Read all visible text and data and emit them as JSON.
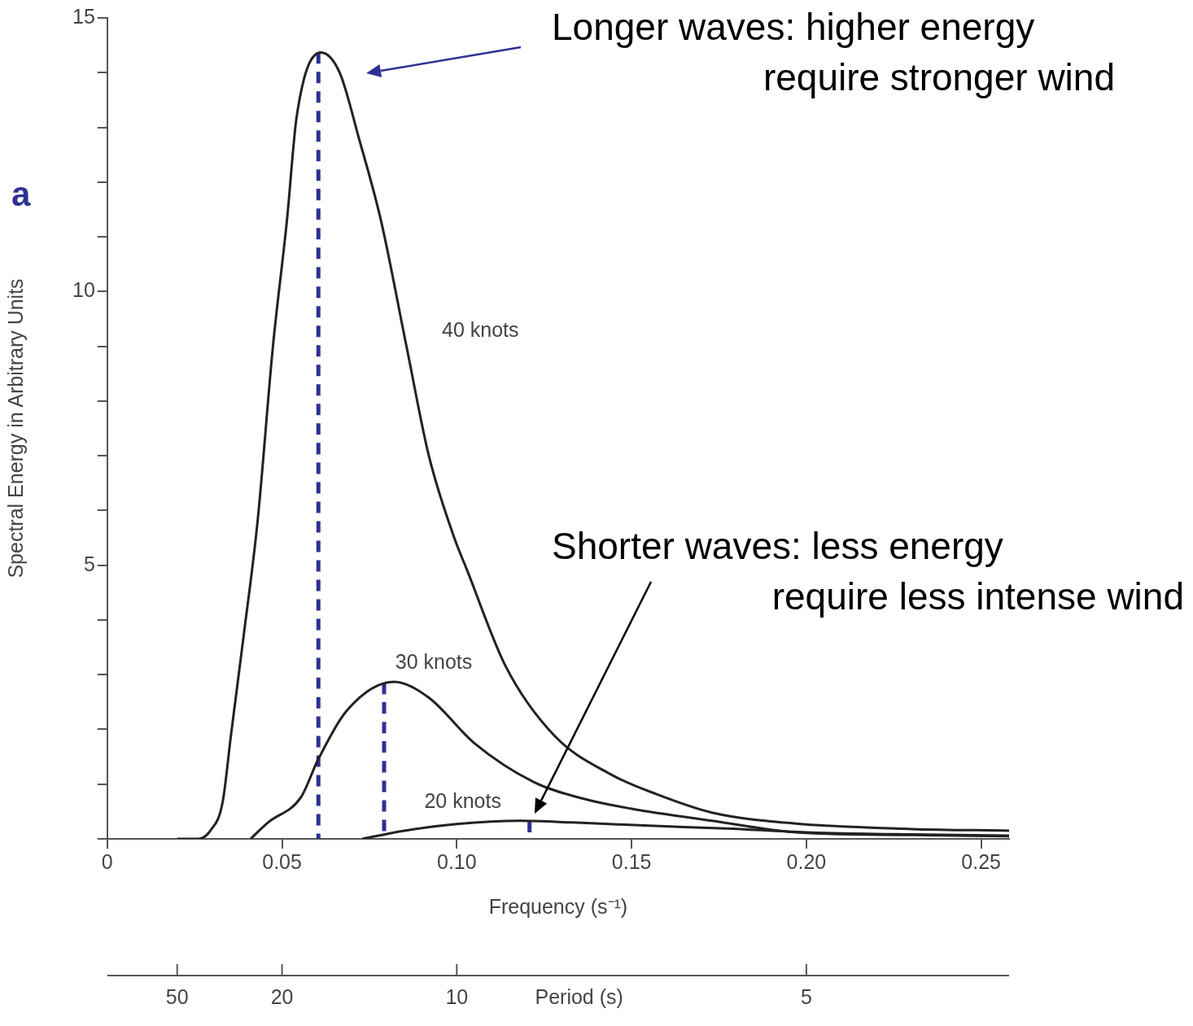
{
  "chart_data": {
    "type": "line",
    "xlabel": "Frequency (s⁻¹)",
    "ylabel": "Spectral Energy in Arbitrary Units",
    "xlim": [
      0,
      0.258
    ],
    "ylim": [
      0,
      15
    ],
    "xticks": [
      {
        "value": 0,
        "label": "0"
      },
      0.05,
      {
        "value": 0.1,
        "label": "0.10"
      },
      0.15,
      {
        "value": 0.2,
        "label": "0.20"
      },
      0.25
    ],
    "yticks": [
      {
        "value": 0,
        "label": null
      },
      {
        "value": 1,
        "label": null
      },
      {
        "value": 2,
        "label": null
      },
      {
        "value": 3,
        "label": null
      },
      {
        "value": 4,
        "label": null
      },
      5,
      {
        "value": 6,
        "label": null
      },
      {
        "value": 7,
        "label": null
      },
      {
        "value": 8,
        "label": null
      },
      {
        "value": 9,
        "label": null
      },
      10,
      {
        "value": 11,
        "label": null
      },
      {
        "value": 12,
        "label": null
      },
      {
        "value": 13,
        "label": null
      },
      {
        "value": 14,
        "label": null
      },
      15
    ],
    "grid": false,
    "legend": false,
    "marker": "none",
    "line_style": "solid",
    "series": [
      {
        "name": "40 knots",
        "color": "#222222",
        "x": [
          0.02,
          0.026,
          0.0295,
          0.033,
          0.0354,
          0.039,
          0.043,
          0.0474,
          0.0514,
          0.0542,
          0.0611,
          0.0665,
          0.072,
          0.0783,
          0.0856,
          0.092,
          0.099,
          0.103,
          0.114,
          0.128,
          0.144,
          0.157,
          0.173,
          0.197,
          0.23,
          0.258
        ],
        "values": [
          0,
          0,
          0.15,
          0.67,
          1.9,
          3.7,
          5.8,
          9.0,
          11.3,
          13.2,
          14.37,
          14.0,
          12.8,
          11.3,
          9.0,
          7.0,
          5.55,
          4.9,
          3.15,
          1.88,
          1.18,
          0.82,
          0.48,
          0.28,
          0.18,
          0.15
        ]
      },
      {
        "name": "30 knots",
        "color": "#222222",
        "x": [
          0.041,
          0.046,
          0.0554,
          0.0604,
          0.0689,
          0.082,
          0.092,
          0.105,
          0.122,
          0.137,
          0.15,
          0.173,
          0.197,
          0.23,
          0.258
        ],
        "values": [
          0,
          0.3,
          0.76,
          1.46,
          2.37,
          2.87,
          2.58,
          1.75,
          1.04,
          0.72,
          0.55,
          0.33,
          0.12,
          0.07,
          0.05
        ]
      },
      {
        "name": "20 knots",
        "color": "#222222",
        "x": [
          0.073,
          0.085,
          0.1,
          0.118,
          0.133,
          0.155,
          0.177,
          0.2,
          0.23,
          0.258
        ],
        "values": [
          0,
          0.15,
          0.27,
          0.33,
          0.3,
          0.24,
          0.19,
          0.12,
          0.08,
          0.06
        ]
      },
      {
        "color": "#2e3192",
        "line_style": "dashed",
        "x": [
          0.0604,
          0.0604
        ],
        "values": [
          0,
          14.37
        ]
      },
      {
        "color": "#2e3192",
        "line_style": "dashed",
        "x": [
          0.0792,
          0.0792
        ],
        "values": [
          0,
          2.85
        ]
      },
      {
        "color": "#2e3192",
        "line_style": "dashed",
        "x": [
          0.1208,
          0.1208
        ],
        "values": [
          0,
          0.33
        ]
      }
    ],
    "annotations": [
      "Longer waves: higher energy\nrequire stronger wind",
      "Shorter waves: less energy\nrequire less intense wind",
      "a",
      "50",
      "20",
      "10",
      "5",
      "Period (s)"
    ]
  }
}
